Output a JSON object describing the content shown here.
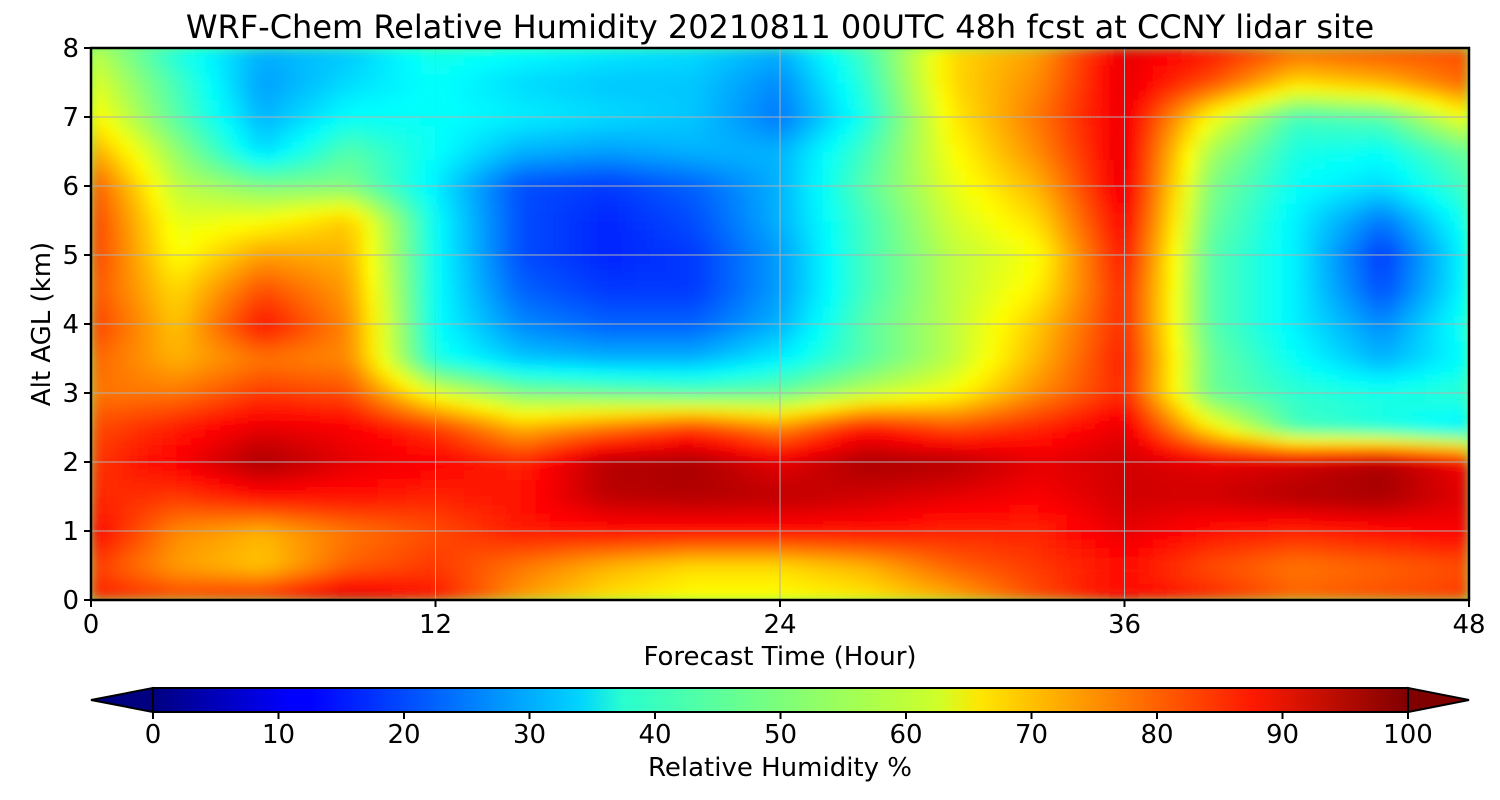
{
  "chart_data": {
    "type": "heatmap",
    "title": "WRF-Chem Relative Humidity 20210811 00UTC 48h fcst at CCNY lidar site",
    "xlabel": "Forecast Time (Hour)",
    "ylabel": "Alt AGL (km)",
    "xlim": [
      0,
      48
    ],
    "ylim": [
      0,
      8
    ],
    "xticks": [
      "0",
      "12",
      "24",
      "36",
      "48"
    ],
    "yticks": [
      "0",
      "1",
      "2",
      "3",
      "4",
      "5",
      "6",
      "7",
      "8"
    ],
    "grid": true,
    "colormap": "jet",
    "colorbar": {
      "label": "Relative Humidity %",
      "range": [
        0,
        100
      ],
      "ticks": [
        "0",
        "10",
        "20",
        "30",
        "40",
        "50",
        "60",
        "70",
        "80",
        "90",
        "100"
      ],
      "extend": "both",
      "orientation": "horizontal"
    },
    "x": [
      0,
      3,
      6,
      9,
      12,
      15,
      18,
      21,
      24,
      27,
      30,
      33,
      36,
      39,
      42,
      45,
      48
    ],
    "y": [
      0,
      0.5,
      1,
      1.5,
      2,
      2.5,
      3,
      3.5,
      4,
      4.5,
      5,
      5.5,
      6,
      6.5,
      7,
      7.5,
      8
    ],
    "z": [
      [
        85,
        82,
        85,
        92,
        86,
        72,
        65,
        62,
        62,
        64,
        70,
        80,
        88,
        84,
        78,
        80,
        82
      ],
      [
        82,
        72,
        68,
        78,
        82,
        76,
        70,
        66,
        66,
        70,
        78,
        82,
        86,
        80,
        76,
        78,
        80
      ],
      [
        88,
        74,
        70,
        76,
        80,
        85,
        86,
        86,
        86,
        86,
        84,
        84,
        90,
        86,
        84,
        86,
        88
      ],
      [
        84,
        82,
        86,
        86,
        84,
        86,
        94,
        95,
        94,
        92,
        90,
        88,
        92,
        92,
        95,
        96,
        90
      ],
      [
        82,
        88,
        96,
        90,
        88,
        84,
        95,
        96,
        90,
        96,
        95,
        90,
        92,
        90,
        92,
        96,
        88
      ],
      [
        80,
        85,
        90,
        88,
        82,
        70,
        76,
        82,
        74,
        86,
        80,
        84,
        90,
        64,
        44,
        40,
        35
      ],
      [
        76,
        76,
        82,
        80,
        60,
        50,
        48,
        46,
        48,
        56,
        62,
        74,
        84,
        48,
        42,
        40,
        42
      ],
      [
        78,
        70,
        76,
        74,
        40,
        32,
        30,
        30,
        36,
        46,
        56,
        70,
        85,
        48,
        38,
        30,
        38
      ],
      [
        82,
        68,
        86,
        74,
        38,
        26,
        22,
        22,
        30,
        46,
        56,
        68,
        84,
        46,
        36,
        26,
        40
      ],
      [
        80,
        66,
        80,
        72,
        38,
        22,
        18,
        18,
        28,
        44,
        56,
        64,
        84,
        46,
        36,
        20,
        38
      ],
      [
        82,
        62,
        72,
        70,
        38,
        20,
        16,
        18,
        28,
        44,
        56,
        62,
        86,
        46,
        36,
        18,
        38
      ],
      [
        82,
        60,
        62,
        68,
        38,
        20,
        16,
        20,
        30,
        44,
        58,
        66,
        88,
        48,
        36,
        24,
        40
      ],
      [
        80,
        56,
        50,
        50,
        36,
        20,
        18,
        22,
        30,
        46,
        60,
        70,
        90,
        50,
        38,
        34,
        44
      ],
      [
        72,
        52,
        34,
        46,
        38,
        30,
        28,
        30,
        30,
        44,
        62,
        74,
        90,
        54,
        40,
        38,
        48
      ],
      [
        64,
        46,
        30,
        38,
        38,
        36,
        34,
        32,
        24,
        40,
        64,
        76,
        90,
        62,
        44,
        46,
        62
      ],
      [
        60,
        44,
        28,
        34,
        38,
        34,
        32,
        32,
        26,
        42,
        66,
        74,
        90,
        80,
        66,
        70,
        78
      ],
      [
        56,
        40,
        30,
        32,
        40,
        38,
        36,
        34,
        30,
        44,
        66,
        72,
        90,
        86,
        78,
        80,
        80
      ]
    ]
  }
}
